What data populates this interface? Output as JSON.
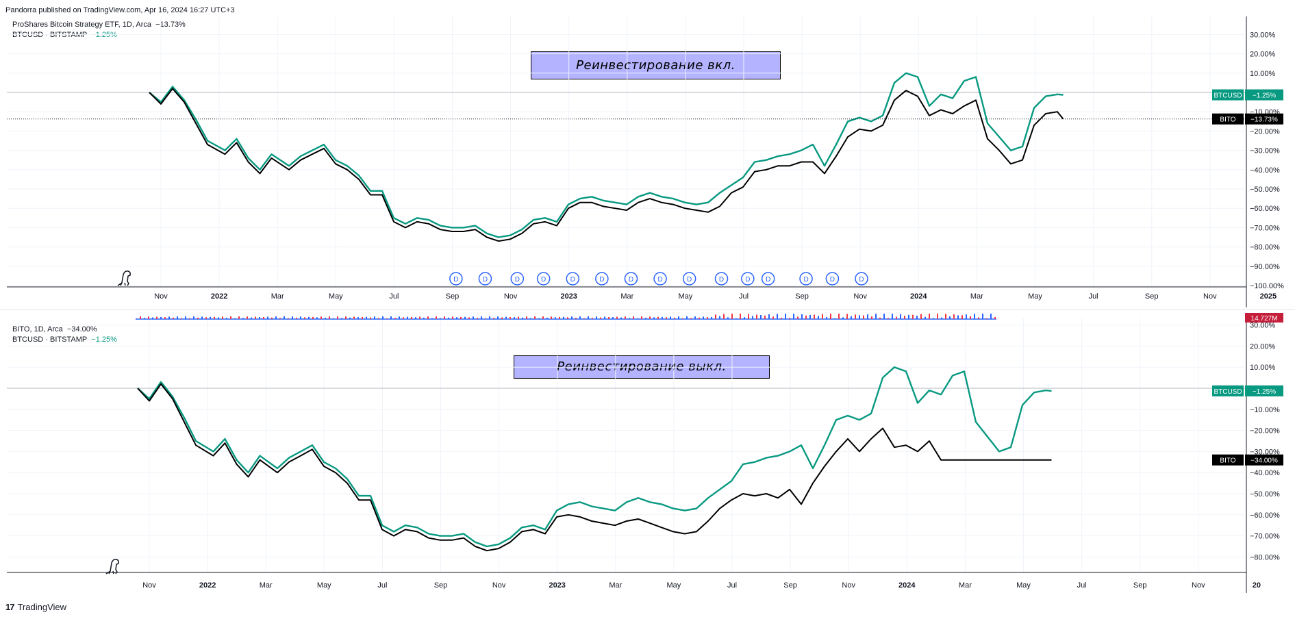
{
  "header": {
    "published": "Pandorra published on TradingView.com, Apr 16, 2024 16:27 UTC+3"
  },
  "footer": {
    "brand": "TradingView",
    "logo": "17"
  },
  "colors": {
    "btcusd": "#089981",
    "bito": "#000000",
    "banner": "#b3b3ff",
    "dividend": "#2962ff"
  },
  "chart_data": [
    {
      "type": "line",
      "pane": "top",
      "legend_main": "ProShares Bitcoin Strategy ETF, 1D, Arca",
      "legend_main_change": "−13.73%",
      "legend_compare": "BTCUSD · BITSTAMP",
      "legend_compare_change": "−1.25%",
      "annotation": "Реинвестирование вкл.",
      "ylim": [
        -100,
        35
      ],
      "y_ticks": [
        "30.00%",
        "20.00%",
        "10.00%",
        "−10.00%",
        "−20.00%",
        "−30.00%",
        "−40.00%",
        "−50.00%",
        "−60.00%",
        "−70.00%",
        "−80.00%",
        "−90.00%",
        "−100.00%"
      ],
      "x_ticks": [
        "Nov",
        "2022",
        "Mar",
        "May",
        "Jul",
        "Sep",
        "Nov",
        "2023",
        "Mar",
        "May",
        "Jul",
        "Sep",
        "Nov",
        "2024",
        "Mar",
        "May",
        "Jul",
        "Sep",
        "Nov",
        "2025"
      ],
      "price_labels": [
        {
          "name": "BTCUSD",
          "value": "−1.25%",
          "y": -1.25
        },
        {
          "name": "BITO",
          "value": "−13.73%",
          "y": -13.73
        }
      ],
      "dividend_marker": "D",
      "dividend_month_index": [
        16.9,
        17.9,
        19.0,
        19.9,
        20.9,
        21.9,
        22.9,
        23.9,
        24.9,
        26.0,
        26.9,
        27.6,
        28.9,
        29.8,
        30.8
      ],
      "series": [
        {
          "name": "BTCUSD",
          "x": [
            0,
            0.4,
            0.8,
            1.2,
            1.6,
            2.0,
            2.6,
            3.0,
            3.4,
            3.8,
            4.2,
            4.8,
            5.2,
            5.6,
            6.0,
            6.4,
            6.8,
            7.2,
            7.6,
            8.0,
            8.4,
            8.8,
            9.2,
            9.6,
            10.0,
            10.4,
            10.8,
            11.2,
            11.6,
            12.0,
            12.4,
            12.8,
            13.2,
            13.6,
            14.0,
            14.4,
            14.8,
            15.2,
            15.6,
            16.0,
            16.4,
            16.8,
            17.2,
            17.6,
            18.0,
            18.4,
            18.8,
            19.2,
            19.6,
            20.0,
            20.4,
            20.8,
            21.2,
            21.6,
            22.0,
            22.4,
            22.8,
            23.2,
            23.6,
            24.0,
            24.4,
            24.8,
            25.2,
            25.6,
            26.0,
            26.4,
            26.8,
            27.2,
            27.6,
            28.0,
            28.4,
            28.8,
            29.2,
            29.6,
            30.0,
            30.4,
            30.8,
            31.2,
            31.4
          ],
          "y": [
            0,
            -5,
            3,
            -4,
            -14,
            -25,
            -30,
            -24,
            -34,
            -40,
            -32,
            -38,
            -33,
            -30,
            -27,
            -35,
            -38,
            -43,
            -51,
            -51,
            -65,
            -68,
            -65,
            -66,
            -69,
            -70,
            -70,
            -69,
            -73,
            -75,
            -74,
            -71,
            -66,
            -65,
            -67,
            -58,
            -55,
            -54,
            -56,
            -57,
            -58,
            -54,
            -52,
            -54,
            -55,
            -57,
            -58,
            -57,
            -52,
            -48,
            -44,
            -36,
            -35,
            -33,
            -32,
            -30,
            -27,
            -38,
            -27,
            -15,
            -13,
            -15,
            -12,
            5,
            10,
            8,
            -7,
            -1,
            -3,
            6,
            8,
            -16,
            -23,
            -30,
            -28,
            -8,
            -2,
            -1,
            -1.25
          ]
        },
        {
          "name": "BITO",
          "x": [
            0,
            0.4,
            0.8,
            1.2,
            1.6,
            2.0,
            2.6,
            3.0,
            3.4,
            3.8,
            4.2,
            4.8,
            5.2,
            5.6,
            6.0,
            6.4,
            6.8,
            7.2,
            7.6,
            8.0,
            8.4,
            8.8,
            9.2,
            9.6,
            10.0,
            10.4,
            10.8,
            11.2,
            11.6,
            12.0,
            12.4,
            12.8,
            13.2,
            13.6,
            14.0,
            14.4,
            14.8,
            15.2,
            15.6,
            16.0,
            16.4,
            16.8,
            17.2,
            17.6,
            18.0,
            18.4,
            18.8,
            19.2,
            19.6,
            20.0,
            20.4,
            20.8,
            21.2,
            21.6,
            22.0,
            22.4,
            22.8,
            23.2,
            23.6,
            24.0,
            24.4,
            24.8,
            25.2,
            25.6,
            26.0,
            26.4,
            26.8,
            27.2,
            27.6,
            28.0,
            28.4,
            28.8,
            29.2,
            29.6,
            30.0,
            30.4,
            30.8,
            31.2,
            31.4
          ],
          "y": [
            0,
            -6,
            2,
            -5,
            -16,
            -27,
            -32,
            -26,
            -36,
            -42,
            -34,
            -40,
            -35,
            -32,
            -29,
            -37,
            -40,
            -45,
            -53,
            -53,
            -67,
            -70,
            -67,
            -68,
            -71,
            -72,
            -72,
            -71,
            -75,
            -77,
            -76,
            -73,
            -68,
            -67,
            -69,
            -60,
            -57,
            -57,
            -59,
            -60,
            -61,
            -57,
            -55,
            -57,
            -58,
            -60,
            -61,
            -62,
            -59,
            -52,
            -49,
            -41,
            -40,
            -38,
            -38,
            -36,
            -36,
            -42,
            -33,
            -23,
            -19,
            -20,
            -17,
            -4,
            1,
            -2,
            -12,
            -9,
            -11,
            -7,
            -4,
            -24,
            -30,
            -37,
            -35,
            -17,
            -11,
            -10,
            -13.73
          ]
        }
      ]
    },
    {
      "type": "line",
      "pane": "bottom",
      "legend_main": "BITO, 1D, Arca",
      "legend_main_change": "−34.00%",
      "legend_compare": "BTCUSD · BITSTAMP",
      "legend_compare_change": "−1.25%",
      "annotation": "Реинвестирование выкл.",
      "ylim": [
        -85,
        32
      ],
      "y_ticks": [
        "30.00%",
        "20.00%",
        "10.00%",
        "−10.00%",
        "−20.00%",
        "−30.00%",
        "−40.00%",
        "−50.00%",
        "−60.00%",
        "−70.00%",
        "−80.00%"
      ],
      "x_ticks": [
        "Nov",
        "2022",
        "Mar",
        "May",
        "Jul",
        "Sep",
        "Nov",
        "2023",
        "Mar",
        "May",
        "Jul",
        "Sep",
        "Nov",
        "2024",
        "Mar",
        "May",
        "Jul",
        "Sep",
        "Nov",
        "20"
      ],
      "price_labels": [
        {
          "name": "BTCUSD",
          "value": "−1.25%",
          "y": -1.25
        },
        {
          "name": "BITO",
          "value": "−34.00%",
          "y": -34.0
        }
      ],
      "volume_label": "14.727M",
      "series": [
        {
          "name": "BTCUSD",
          "x": [
            0,
            0.4,
            0.8,
            1.2,
            1.6,
            2.0,
            2.6,
            3.0,
            3.4,
            3.8,
            4.2,
            4.8,
            5.2,
            5.6,
            6.0,
            6.4,
            6.8,
            7.2,
            7.6,
            8.0,
            8.4,
            8.8,
            9.2,
            9.6,
            10.0,
            10.4,
            10.8,
            11.2,
            11.6,
            12.0,
            12.4,
            12.8,
            13.2,
            13.6,
            14.0,
            14.4,
            14.8,
            15.2,
            15.6,
            16.0,
            16.4,
            16.8,
            17.2,
            17.6,
            18.0,
            18.4,
            18.8,
            19.2,
            19.6,
            20.0,
            20.4,
            20.8,
            21.2,
            21.6,
            22.0,
            22.4,
            22.8,
            23.2,
            23.6,
            24.0,
            24.4,
            24.8,
            25.2,
            25.6,
            26.0,
            26.4,
            26.8,
            27.2,
            27.6,
            28.0,
            28.4,
            28.8,
            29.2,
            29.6,
            30.0,
            30.4,
            30.8,
            31.2,
            31.4
          ],
          "y": [
            0,
            -5,
            3,
            -4,
            -14,
            -25,
            -30,
            -24,
            -34,
            -40,
            -32,
            -38,
            -33,
            -30,
            -27,
            -35,
            -38,
            -43,
            -51,
            -51,
            -65,
            -68,
            -65,
            -66,
            -69,
            -70,
            -70,
            -69,
            -73,
            -75,
            -74,
            -71,
            -66,
            -65,
            -67,
            -58,
            -55,
            -54,
            -56,
            -57,
            -58,
            -54,
            -52,
            -54,
            -55,
            -57,
            -58,
            -57,
            -52,
            -48,
            -44,
            -36,
            -35,
            -33,
            -32,
            -30,
            -27,
            -38,
            -27,
            -15,
            -13,
            -15,
            -12,
            5,
            10,
            8,
            -7,
            -1,
            -3,
            6,
            8,
            -16,
            -23,
            -30,
            -28,
            -8,
            -2,
            -1,
            -1.25
          ]
        },
        {
          "name": "BITO",
          "x": [
            0,
            0.4,
            0.8,
            1.2,
            1.6,
            2.0,
            2.6,
            3.0,
            3.4,
            3.8,
            4.2,
            4.8,
            5.2,
            5.6,
            6.0,
            6.4,
            6.8,
            7.2,
            7.6,
            8.0,
            8.4,
            8.8,
            9.2,
            9.6,
            10.0,
            10.4,
            10.8,
            11.2,
            11.6,
            12.0,
            12.4,
            12.8,
            13.2,
            13.6,
            14.0,
            14.4,
            14.8,
            15.2,
            15.6,
            16.0,
            16.4,
            16.8,
            17.2,
            17.6,
            18.0,
            18.4,
            18.8,
            19.2,
            19.6,
            20.0,
            20.4,
            20.8,
            21.2,
            21.6,
            22.0,
            22.4,
            22.8,
            23.2,
            23.6,
            24.0,
            24.4,
            24.8,
            25.2,
            25.6,
            26.0,
            26.4,
            26.8,
            27.2,
            27.6,
            28.0,
            28.4,
            28.8,
            29.2,
            29.6,
            30.0,
            30.4,
            30.8,
            31.2,
            31.4
          ],
          "y": [
            0,
            -6,
            2,
            -5,
            -16,
            -27,
            -32,
            -26,
            -36,
            -42,
            -34,
            -40,
            -35,
            -32,
            -29,
            -37,
            -40,
            -45,
            -53,
            -53,
            -67,
            -70,
            -67,
            -68,
            -71,
            -72,
            -72,
            -71,
            -75,
            -77,
            -76,
            -73,
            -68,
            -67,
            -69,
            -61,
            -60,
            -61,
            -63,
            -64,
            -65,
            -63,
            -62,
            -64,
            -66,
            -68,
            -69,
            -68,
            -63,
            -57,
            -53,
            -50,
            -51,
            -50,
            -52,
            -48,
            -55,
            -45,
            -37,
            -30,
            -24,
            -30,
            -24,
            -19,
            -28,
            -27,
            -30,
            -25,
            -34,
            -34,
            -34,
            -34,
            -34,
            -34,
            -34,
            -34,
            -34,
            -34,
            -34
          ]
        }
      ]
    }
  ]
}
